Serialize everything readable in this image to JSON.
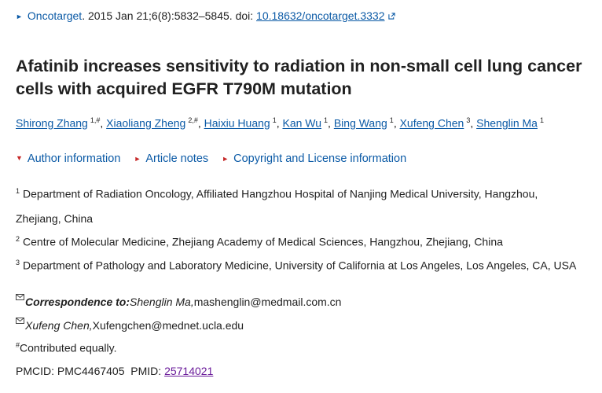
{
  "citation": {
    "journal": "Oncotarget",
    "details": ". 2015 Jan 21;6(8):5832–5845. doi: ",
    "doi": "10.18632/oncotarget.3332"
  },
  "title": "Afatinib increases sensitivity to radiation in non-small cell lung cancer cells with acquired EGFR T790M mutation",
  "authors": [
    {
      "name": "Shirong Zhang",
      "aff": "1,#"
    },
    {
      "name": "Xiaoliang Zheng",
      "aff": "2,#"
    },
    {
      "name": "Haixiu Huang",
      "aff": "1"
    },
    {
      "name": "Kan Wu",
      "aff": "1"
    },
    {
      "name": "Bing Wang",
      "aff": "1"
    },
    {
      "name": "Xufeng Chen",
      "aff": "3"
    },
    {
      "name": "Shenglin Ma",
      "aff": "1"
    }
  ],
  "toggles": {
    "author_info": "Author information",
    "article_notes": "Article notes",
    "copyright": "Copyright and License information"
  },
  "affiliations": [
    {
      "num": "1",
      "line1": "Department of Radiation Oncology, Affiliated Hangzhou Hospital of Nanjing Medical University, Hangzhou,",
      "line2": "Zhejiang, China"
    },
    {
      "num": "2",
      "line1": "Centre of Molecular Medicine, Zhejiang Academy of Medical Sciences, Hangzhou, Zhejiang, China"
    },
    {
      "num": "3",
      "line1": "Department of Pathology and Laboratory Medicine, University of California at Los Angeles, Los Angeles, CA, USA"
    }
  ],
  "correspondence": {
    "label": "Correspondence to:",
    "name1": "Shenglin Ma,",
    "email1": "mashenglin@medmail.com.cn",
    "name2": "Xufeng Chen,",
    "email2": "Xufengchen@mednet.ucla.edu"
  },
  "contrib": {
    "mark": "#",
    "text": "Contributed equally."
  },
  "ids": {
    "pmcid": "PMCID: PMC4467405",
    "pmid_label": "PMID: ",
    "pmid": "25714021"
  }
}
